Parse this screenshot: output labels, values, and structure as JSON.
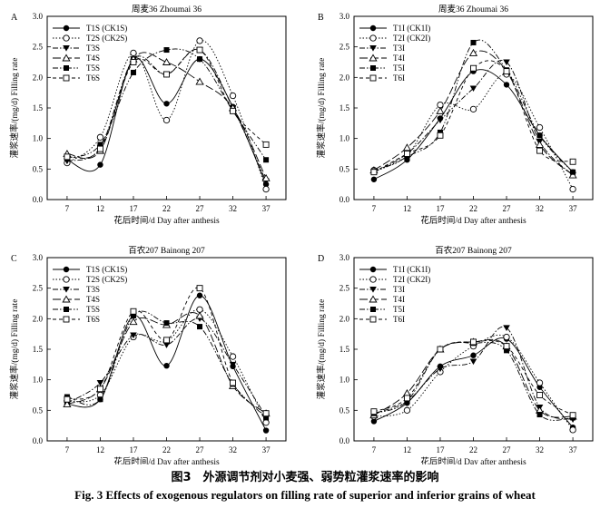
{
  "caption": {
    "cn": "图3　外源调节剂对小麦强、弱势粒灌浆速率的影响",
    "en": "Fig. 3    Effects of exogenous regulators on filling rate of superior and inferior grains of wheat"
  },
  "chart_data": [
    {
      "panel": "A",
      "title": "周麦36 Zhoumai 36",
      "type": "line",
      "ylabel": "灌浆速率/(mg/d) Filling rate",
      "xlabel": "花后时间/d Day after anthesis",
      "x": [
        7,
        12,
        17,
        22,
        27,
        32,
        37
      ],
      "ylim": [
        0,
        3.0
      ],
      "legend_position": "top-left",
      "series": [
        {
          "name": "T1S (CK1S)",
          "marker": "circle-filled",
          "dash": "solid",
          "values": [
            0.65,
            0.57,
            2.3,
            1.57,
            2.3,
            1.52,
            0.25
          ]
        },
        {
          "name": "T2S (CK2S)",
          "marker": "circle-open",
          "dash": "dot",
          "values": [
            0.6,
            1.02,
            2.4,
            1.3,
            2.6,
            1.7,
            0.17
          ]
        },
        {
          "name": "T3S",
          "marker": "triangle-down",
          "dash": "dashdot",
          "values": [
            0.63,
            0.85,
            2.3,
            2.05,
            2.45,
            1.5,
            0.3
          ]
        },
        {
          "name": "T4S",
          "marker": "triangle-open",
          "dash": "longdash",
          "values": [
            0.75,
            0.8,
            2.3,
            2.25,
            1.93,
            1.5,
            0.35
          ]
        },
        {
          "name": "T5S",
          "marker": "square-filled",
          "dash": "dashdotdot",
          "values": [
            0.68,
            0.9,
            2.08,
            2.45,
            2.3,
            1.45,
            0.65
          ]
        },
        {
          "name": "T6S",
          "marker": "square-open",
          "dash": "dash",
          "values": [
            0.7,
            0.83,
            2.25,
            2.05,
            2.45,
            1.45,
            0.9
          ]
        }
      ]
    },
    {
      "panel": "B",
      "title": "周麦36 Zhoumai 36",
      "type": "line",
      "ylabel": "灌浆速率/(mg/d) Filling rate",
      "xlabel": "花后时间/d Day after anthesis",
      "x": [
        7,
        12,
        17,
        22,
        27,
        32,
        37
      ],
      "ylim": [
        0,
        3.0
      ],
      "legend_position": "top-left",
      "series": [
        {
          "name": "T1I (CK1I)",
          "marker": "circle-filled",
          "dash": "solid",
          "values": [
            0.33,
            0.65,
            1.33,
            2.1,
            1.88,
            1.05,
            0.45
          ]
        },
        {
          "name": "T2I (CK2I)",
          "marker": "circle-open",
          "dash": "dot",
          "values": [
            0.48,
            0.72,
            1.55,
            1.48,
            2.05,
            1.18,
            0.17
          ]
        },
        {
          "name": "T3I",
          "marker": "triangle-down",
          "dash": "dashdot",
          "values": [
            0.45,
            0.75,
            1.3,
            1.82,
            2.25,
            0.95,
            0.4
          ]
        },
        {
          "name": "T4I",
          "marker": "triangle-open",
          "dash": "longdash",
          "values": [
            0.48,
            0.85,
            1.45,
            2.4,
            2.1,
            0.9,
            0.4
          ]
        },
        {
          "name": "T5I",
          "marker": "square-filled",
          "dash": "dashdotdot",
          "values": [
            0.45,
            0.7,
            1.1,
            2.57,
            2.12,
            1.05,
            0.45
          ]
        },
        {
          "name": "T6I",
          "marker": "square-open",
          "dash": "dash",
          "values": [
            0.45,
            0.75,
            1.05,
            2.15,
            2.1,
            0.8,
            0.62
          ]
        }
      ]
    },
    {
      "panel": "C",
      "title": "百农207 Bainong 207",
      "type": "line",
      "ylabel": "灌浆速率/(mg/d) Filling rate",
      "xlabel": "花后时间/d Day after anthesis",
      "x": [
        7,
        12,
        17,
        22,
        27,
        32,
        37
      ],
      "ylim": [
        0,
        3.0
      ],
      "legend_position": "top-left",
      "series": [
        {
          "name": "T1S (CK1S)",
          "marker": "circle-filled",
          "dash": "solid",
          "values": [
            0.6,
            0.68,
            2.05,
            1.23,
            2.38,
            1.22,
            0.17
          ]
        },
        {
          "name": "T2S (CK2S)",
          "marker": "circle-open",
          "dash": "dot",
          "values": [
            0.65,
            0.75,
            1.7,
            1.63,
            2.15,
            1.38,
            0.3
          ]
        },
        {
          "name": "T3S",
          "marker": "triangle-down",
          "dash": "dashdot",
          "values": [
            0.62,
            0.95,
            1.73,
            1.57,
            2.0,
            1.25,
            0.4
          ]
        },
        {
          "name": "T4S",
          "marker": "triangle-open",
          "dash": "longdash",
          "values": [
            0.6,
            0.85,
            1.95,
            1.9,
            2.05,
            0.9,
            0.45
          ]
        },
        {
          "name": "T5S",
          "marker": "square-filled",
          "dash": "dashdotdot",
          "values": [
            0.72,
            0.68,
            2.05,
            1.93,
            1.87,
            0.93,
            0.38
          ]
        },
        {
          "name": "T6S",
          "marker": "square-open",
          "dash": "dash",
          "values": [
            0.68,
            0.85,
            2.12,
            1.65,
            2.5,
            0.95,
            0.45
          ]
        }
      ]
    },
    {
      "panel": "D",
      "title": "百农207 Bainong 207",
      "type": "line",
      "ylabel": "灌浆速率/(mg/d) Filling rate",
      "xlabel": "花后时间/d Day after anthesis",
      "x": [
        7,
        12,
        17,
        22,
        27,
        32,
        37
      ],
      "ylim": [
        0,
        3.0
      ],
      "legend_position": "top-left",
      "series": [
        {
          "name": "T1I (CK1I)",
          "marker": "circle-filled",
          "dash": "solid",
          "values": [
            0.32,
            0.62,
            1.22,
            1.4,
            1.67,
            0.88,
            0.22
          ]
        },
        {
          "name": "T2I (CK2I)",
          "marker": "circle-open",
          "dash": "dot",
          "values": [
            0.4,
            0.5,
            1.13,
            1.55,
            1.7,
            0.95,
            0.18
          ]
        },
        {
          "name": "T3I",
          "marker": "triangle-down",
          "dash": "dashdot",
          "values": [
            0.45,
            0.65,
            1.18,
            1.3,
            1.85,
            0.55,
            0.35
          ]
        },
        {
          "name": "T4I",
          "marker": "triangle-open",
          "dash": "longdash",
          "values": [
            0.42,
            0.78,
            1.5,
            1.62,
            1.55,
            0.5,
            0.4
          ]
        },
        {
          "name": "T5I",
          "marker": "square-filled",
          "dash": "dashdotdot",
          "values": [
            0.45,
            0.65,
            1.5,
            1.6,
            1.48,
            0.43,
            0.38
          ]
        },
        {
          "name": "T6I",
          "marker": "square-open",
          "dash": "dash",
          "values": [
            0.48,
            0.7,
            1.5,
            1.62,
            1.55,
            0.75,
            0.42
          ]
        }
      ]
    }
  ]
}
